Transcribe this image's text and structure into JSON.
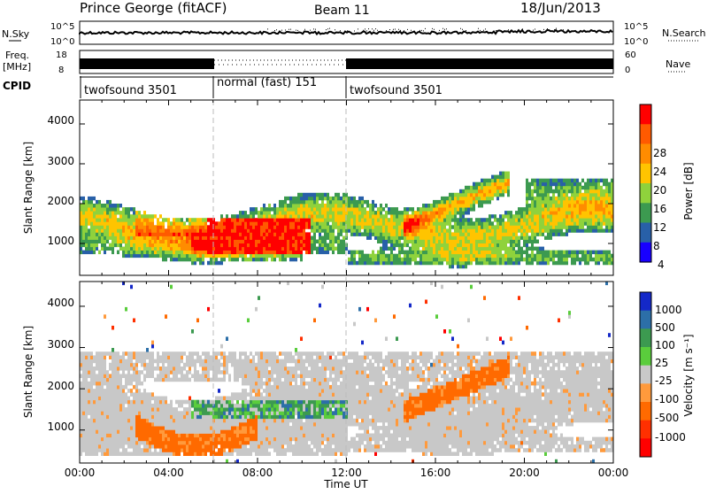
{
  "header": {
    "title": "Prince George (fitACF)",
    "beam": "Beam 11",
    "date": "18/Jun/2013"
  },
  "nsky_panel": {
    "left_label": "N.Sky",
    "ticks_left": [
      "10^5",
      "10^0"
    ],
    "right_label": "N.Search",
    "ticks_right": [
      "10^5",
      "10^0"
    ]
  },
  "freq_panel": {
    "left_label_1": "Freq.",
    "left_label_2": "[MHz]",
    "ticks_left": [
      "18",
      "8"
    ],
    "right_label": "Nave",
    "ticks_right": [
      "60",
      "0"
    ]
  },
  "cpid": {
    "label": "CPID",
    "segments": [
      {
        "name": "twofsound 3501",
        "start": 0,
        "end": 6
      },
      {
        "name": "normal (fast) 151",
        "start": 6,
        "end": 12
      },
      {
        "name": "twofsound 3501",
        "start": 12,
        "end": 24
      }
    ]
  },
  "power_panel": {
    "ylabel": "Slant Range [km]",
    "yticks": [
      "4000",
      "3000",
      "2000",
      "1000"
    ],
    "colorbar_label": "Power [dB]",
    "colorbar_ticks": [
      "28",
      "24",
      "20",
      "16",
      "12",
      "8",
      "4"
    ],
    "colors": [
      "#ff0000",
      "#ff5a00",
      "#ff8c00",
      "#ffc400",
      "#8fd23c",
      "#3c9a50",
      "#2860a8",
      "#1800ff"
    ]
  },
  "velocity_panel": {
    "ylabel": "Slant Range [km]",
    "yticks": [
      "4000",
      "3000",
      "2000",
      "1000"
    ],
    "colorbar_label": "Velocity [m s⁻¹]",
    "colorbar_ticks": [
      "1000",
      "500",
      "100",
      "25",
      "-25",
      "-100",
      "-500",
      "-1000"
    ],
    "colors": [
      "#1428c8",
      "#2c6fa8",
      "#3c9a50",
      "#5acd3c",
      "#c8c8c8",
      "#ff9a3c",
      "#ff6a00",
      "#ff3000",
      "#ff0000"
    ]
  },
  "xaxis": {
    "ticks": [
      "00:00",
      "04:00",
      "08:00",
      "12:00",
      "16:00",
      "20:00",
      "00:00"
    ],
    "label": "Time UT"
  },
  "chart_data": [
    {
      "type": "line",
      "panel": "noise",
      "x_range_hours": [
        0,
        24
      ],
      "yscale": "log",
      "ylim": [
        1,
        100000
      ]
    },
    {
      "type": "line",
      "panel": "frequency",
      "x_range_hours": [
        0,
        24
      ],
      "ylim": [
        8,
        18
      ],
      "y2lim": [
        0,
        60
      ]
    },
    {
      "type": "heatmap",
      "panel": "power",
      "title": "Power [dB]",
      "xlabel": "Time UT",
      "ylabel": "Slant Range [km]",
      "x_range_hours": [
        0,
        24
      ],
      "ylim": [
        200,
        4600
      ],
      "color_scale": [
        0,
        32
      ]
    },
    {
      "type": "heatmap",
      "panel": "velocity",
      "title": "Velocity [m s⁻¹]",
      "xlabel": "Time UT",
      "ylabel": "Slant Range [km]",
      "x_range_hours": [
        0,
        24
      ],
      "ylim": [
        200,
        4600
      ],
      "color_levels": [
        1000,
        500,
        100,
        25,
        -25,
        -100,
        -500,
        -1000
      ]
    }
  ]
}
